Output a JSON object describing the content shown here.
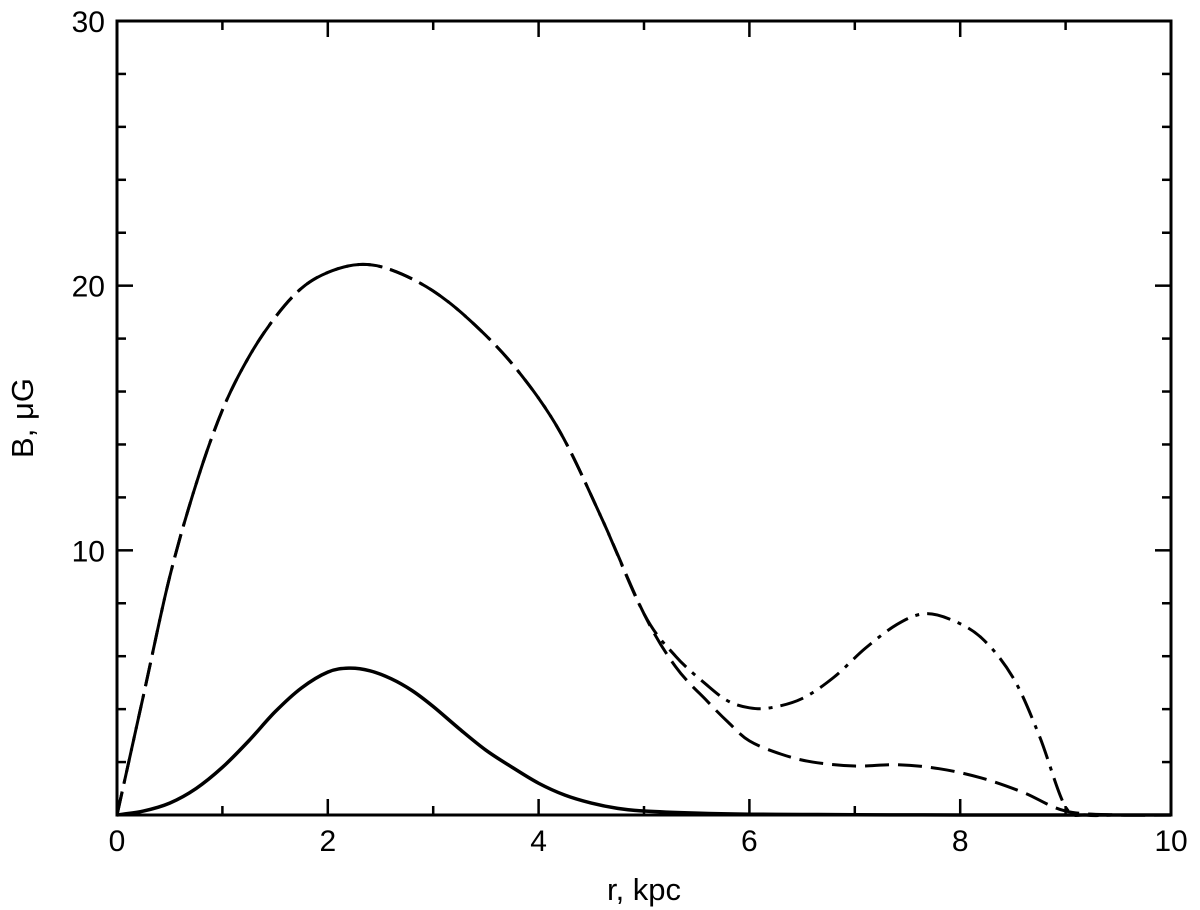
{
  "chart_data": {
    "type": "line",
    "title": "",
    "xlabel": "r, kpc",
    "ylabel": "B, μG",
    "xlim": [
      0,
      10
    ],
    "ylim": [
      0,
      30
    ],
    "x_ticks": [
      "0",
      "2",
      "4",
      "6",
      "8",
      "10"
    ],
    "y_ticks": [
      "10",
      "20",
      "30"
    ],
    "grid": false,
    "legend": "none",
    "series": [
      {
        "style": "solid",
        "x": [
          0,
          0.25,
          0.5,
          0.75,
          1.0,
          1.25,
          1.5,
          1.75,
          2.0,
          2.2,
          2.4,
          2.6,
          2.8,
          3.0,
          3.25,
          3.5,
          3.75,
          4.0,
          4.25,
          4.5,
          4.75,
          5.0,
          5.5,
          6.0,
          6.5,
          7.0,
          8.0,
          9.0,
          10.0
        ],
        "y": [
          0,
          0.15,
          0.45,
          1.0,
          1.8,
          2.8,
          3.9,
          4.8,
          5.4,
          5.55,
          5.45,
          5.15,
          4.7,
          4.1,
          3.25,
          2.45,
          1.8,
          1.2,
          0.75,
          0.45,
          0.25,
          0.15,
          0.07,
          0.03,
          0.02,
          0.01,
          0.0,
          0.0,
          0.0
        ]
      },
      {
        "style": "dashed",
        "x": [
          0,
          0.25,
          0.5,
          0.75,
          1.0,
          1.25,
          1.5,
          1.75,
          2.0,
          2.3,
          2.6,
          3.0,
          3.4,
          3.8,
          4.2,
          4.6,
          5.0,
          5.3,
          5.6,
          5.8,
          6.0,
          6.3,
          6.6,
          7.0,
          7.4,
          7.8,
          8.2,
          8.6,
          9.0,
          9.5,
          10.0
        ],
        "y": [
          0,
          4.5,
          9.0,
          12.5,
          15.3,
          17.3,
          18.8,
          19.9,
          20.5,
          20.8,
          20.6,
          19.8,
          18.5,
          16.8,
          14.5,
          11.2,
          7.6,
          5.6,
          4.3,
          3.5,
          2.8,
          2.3,
          2.0,
          1.85,
          1.9,
          1.75,
          1.4,
          0.85,
          0.15,
          0.0,
          0.0
        ]
      },
      {
        "style": "dash-dot",
        "x": [
          0,
          0.25,
          0.5,
          0.75,
          1.0,
          1.25,
          1.5,
          1.75,
          2.0,
          2.3,
          2.6,
          3.0,
          3.4,
          3.8,
          4.2,
          4.6,
          5.0,
          5.3,
          5.6,
          5.8,
          6.0,
          6.2,
          6.5,
          6.8,
          7.1,
          7.4,
          7.65,
          7.9,
          8.2,
          8.5,
          8.75,
          9.0,
          9.2,
          9.5,
          10.0
        ],
        "y": [
          0,
          4.5,
          9.0,
          12.5,
          15.3,
          17.3,
          18.8,
          19.9,
          20.5,
          20.8,
          20.6,
          19.8,
          18.5,
          16.8,
          14.5,
          11.2,
          7.6,
          6.0,
          4.9,
          4.3,
          4.05,
          4.05,
          4.4,
          5.2,
          6.3,
          7.2,
          7.6,
          7.4,
          6.7,
          5.2,
          3.0,
          0.3,
          0.0,
          0.0,
          0.0
        ]
      }
    ]
  }
}
